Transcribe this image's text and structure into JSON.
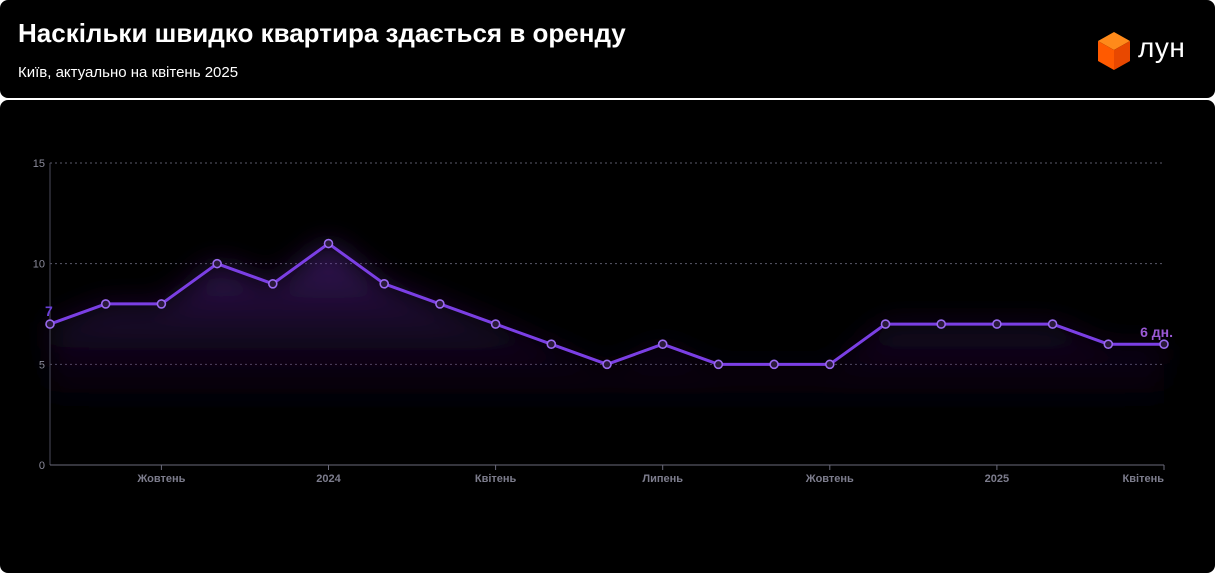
{
  "header": {
    "title": "Наскільки швидко квартира здається в оренду",
    "subtitle": "Київ, актуально на квітень 2025",
    "brand": "лун",
    "logo_icon": "orange-cube-icon"
  },
  "colors": {
    "background": "#000000",
    "line": "#7b3fe4",
    "end_label": "#9b59d6",
    "start_label": "#6a3fd8",
    "logo_orange": "#ff6a00"
  },
  "chart_data": {
    "type": "line",
    "title": "Наскільки швидко квартира здається в оренду",
    "subtitle": "Київ, актуально на квітень 2025",
    "xlabel": "",
    "ylabel": "",
    "ylim": [
      0,
      15
    ],
    "yticks": [
      0,
      5,
      10,
      15
    ],
    "grid": true,
    "x": [
      "2023-08",
      "2023-09",
      "2023-10",
      "2023-11",
      "2023-12",
      "2024-01",
      "2024-02",
      "2024-03",
      "2024-04",
      "2024-05",
      "2024-06",
      "2024-07",
      "2024-08",
      "2024-09",
      "2024-10",
      "2024-11",
      "2024-12",
      "2025-01",
      "2025-02",
      "2025-03",
      "2025-04"
    ],
    "values": [
      7,
      8,
      8,
      10,
      9,
      11,
      9,
      8,
      7,
      6,
      5,
      6,
      5,
      5,
      5,
      7,
      7,
      7,
      7,
      6,
      6
    ],
    "x_tick_labels": [
      {
        "x": "2023-10",
        "label": "Жовтень"
      },
      {
        "x": "2024-01",
        "label": "2024"
      },
      {
        "x": "2024-04",
        "label": "Квітень"
      },
      {
        "x": "2024-07",
        "label": "Липень"
      },
      {
        "x": "2024-10",
        "label": "Жовтень"
      },
      {
        "x": "2025-01",
        "label": "2025"
      },
      {
        "x": "2025-04",
        "label": "Квітень"
      }
    ],
    "start_label": "7",
    "end_label": "6 дн."
  }
}
